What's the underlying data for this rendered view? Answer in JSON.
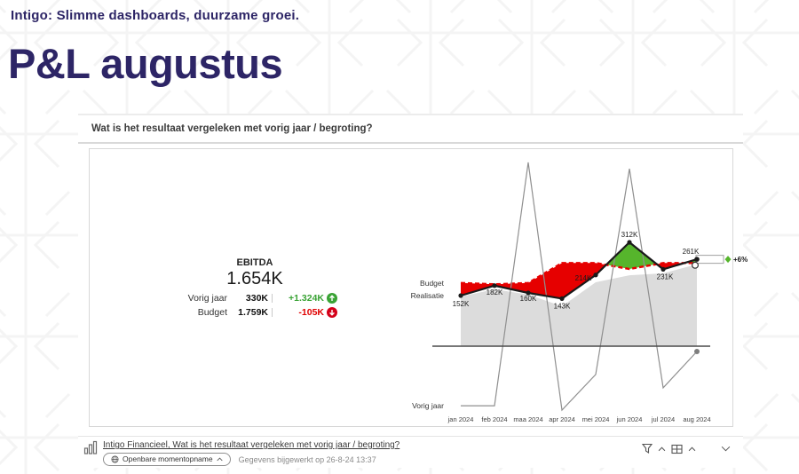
{
  "page": {
    "tagline": "Intigo: Slimme dashboards, duurzame groei.",
    "title": "P&L augustus"
  },
  "theme": {
    "brand_purple": "#2d2566",
    "positive_green": "#3aa335",
    "negative_red": "#e00000"
  },
  "embed": {
    "question": "Wat is het resultaat vergeleken met vorig jaar / begroting?",
    "kpi": {
      "title": "EBITDA",
      "value": "1.654K",
      "rows": [
        {
          "label": "Vorig jaar",
          "value": "330K",
          "delta": "+1.324K",
          "direction": "up"
        },
        {
          "label": "Budget",
          "value": "1.759K",
          "delta": "-105K",
          "direction": "down"
        }
      ]
    },
    "footer": {
      "report_link": "Intigo Financieel, Wat is het resultaat vergeleken met vorig jaar / begroting?",
      "snapshot_label": "Openbare momentopname",
      "updated_text": "Gegevens bijgewerkt op 26-8-24 13:37",
      "icons": [
        "bar-chart-icon",
        "globe-icon",
        "funnel-icon",
        "layout-grid-icon",
        "chevron-down-icon"
      ]
    }
  },
  "chart_data": {
    "type": "line",
    "style": "variance chart: actual line vs dashed budget with red/green fill, previous-year gray area, previous-year comparison zigzag line below axis",
    "categories": [
      "jan 2024",
      "feb 2024",
      "maa 2024",
      "apr 2024",
      "mei 2024",
      "jun 2024",
      "jul 2024",
      "aug 2024"
    ],
    "series": [
      {
        "name": "Realisatie",
        "values": [
          152,
          182,
          160,
          143,
          214,
          312,
          231,
          261
        ]
      },
      {
        "name": "Budget",
        "values": [
          190,
          186,
          190,
          250,
          250,
          232,
          250,
          250
        ],
        "note": "dashed red line, values estimated from pixels"
      },
      {
        "name": "Vorig jaar (area)",
        "values": [
          149,
          171,
          155,
          120,
          192,
          213,
          219,
          246
        ],
        "note": "gray area, values estimated from pixels"
      },
      {
        "name": "Vorig jaar (line)",
        "values": [
          -179,
          -179,
          552,
          -192,
          -85,
          533,
          -125,
          -16
        ],
        "note": "gray zigzag comparison line, values estimated from pixels"
      }
    ],
    "point_labels": [
      "152K",
      "182K",
      "160K",
      "143K",
      "214K",
      "312K",
      "231K",
      "261K"
    ],
    "row_labels": [
      "Budget",
      "Realisatie",
      "Vorig jaar"
    ],
    "end_annotation": {
      "label": "+6%"
    },
    "colors": {
      "negative": "#e60000",
      "positive": "#56b52c",
      "py_area": "#dcdcdc",
      "actual": "#1a1a1a",
      "py_line": "#8f8f8f"
    },
    "ylim": [
      -200,
      560
    ],
    "grid": false,
    "legend_position": "left-of-first-points"
  }
}
